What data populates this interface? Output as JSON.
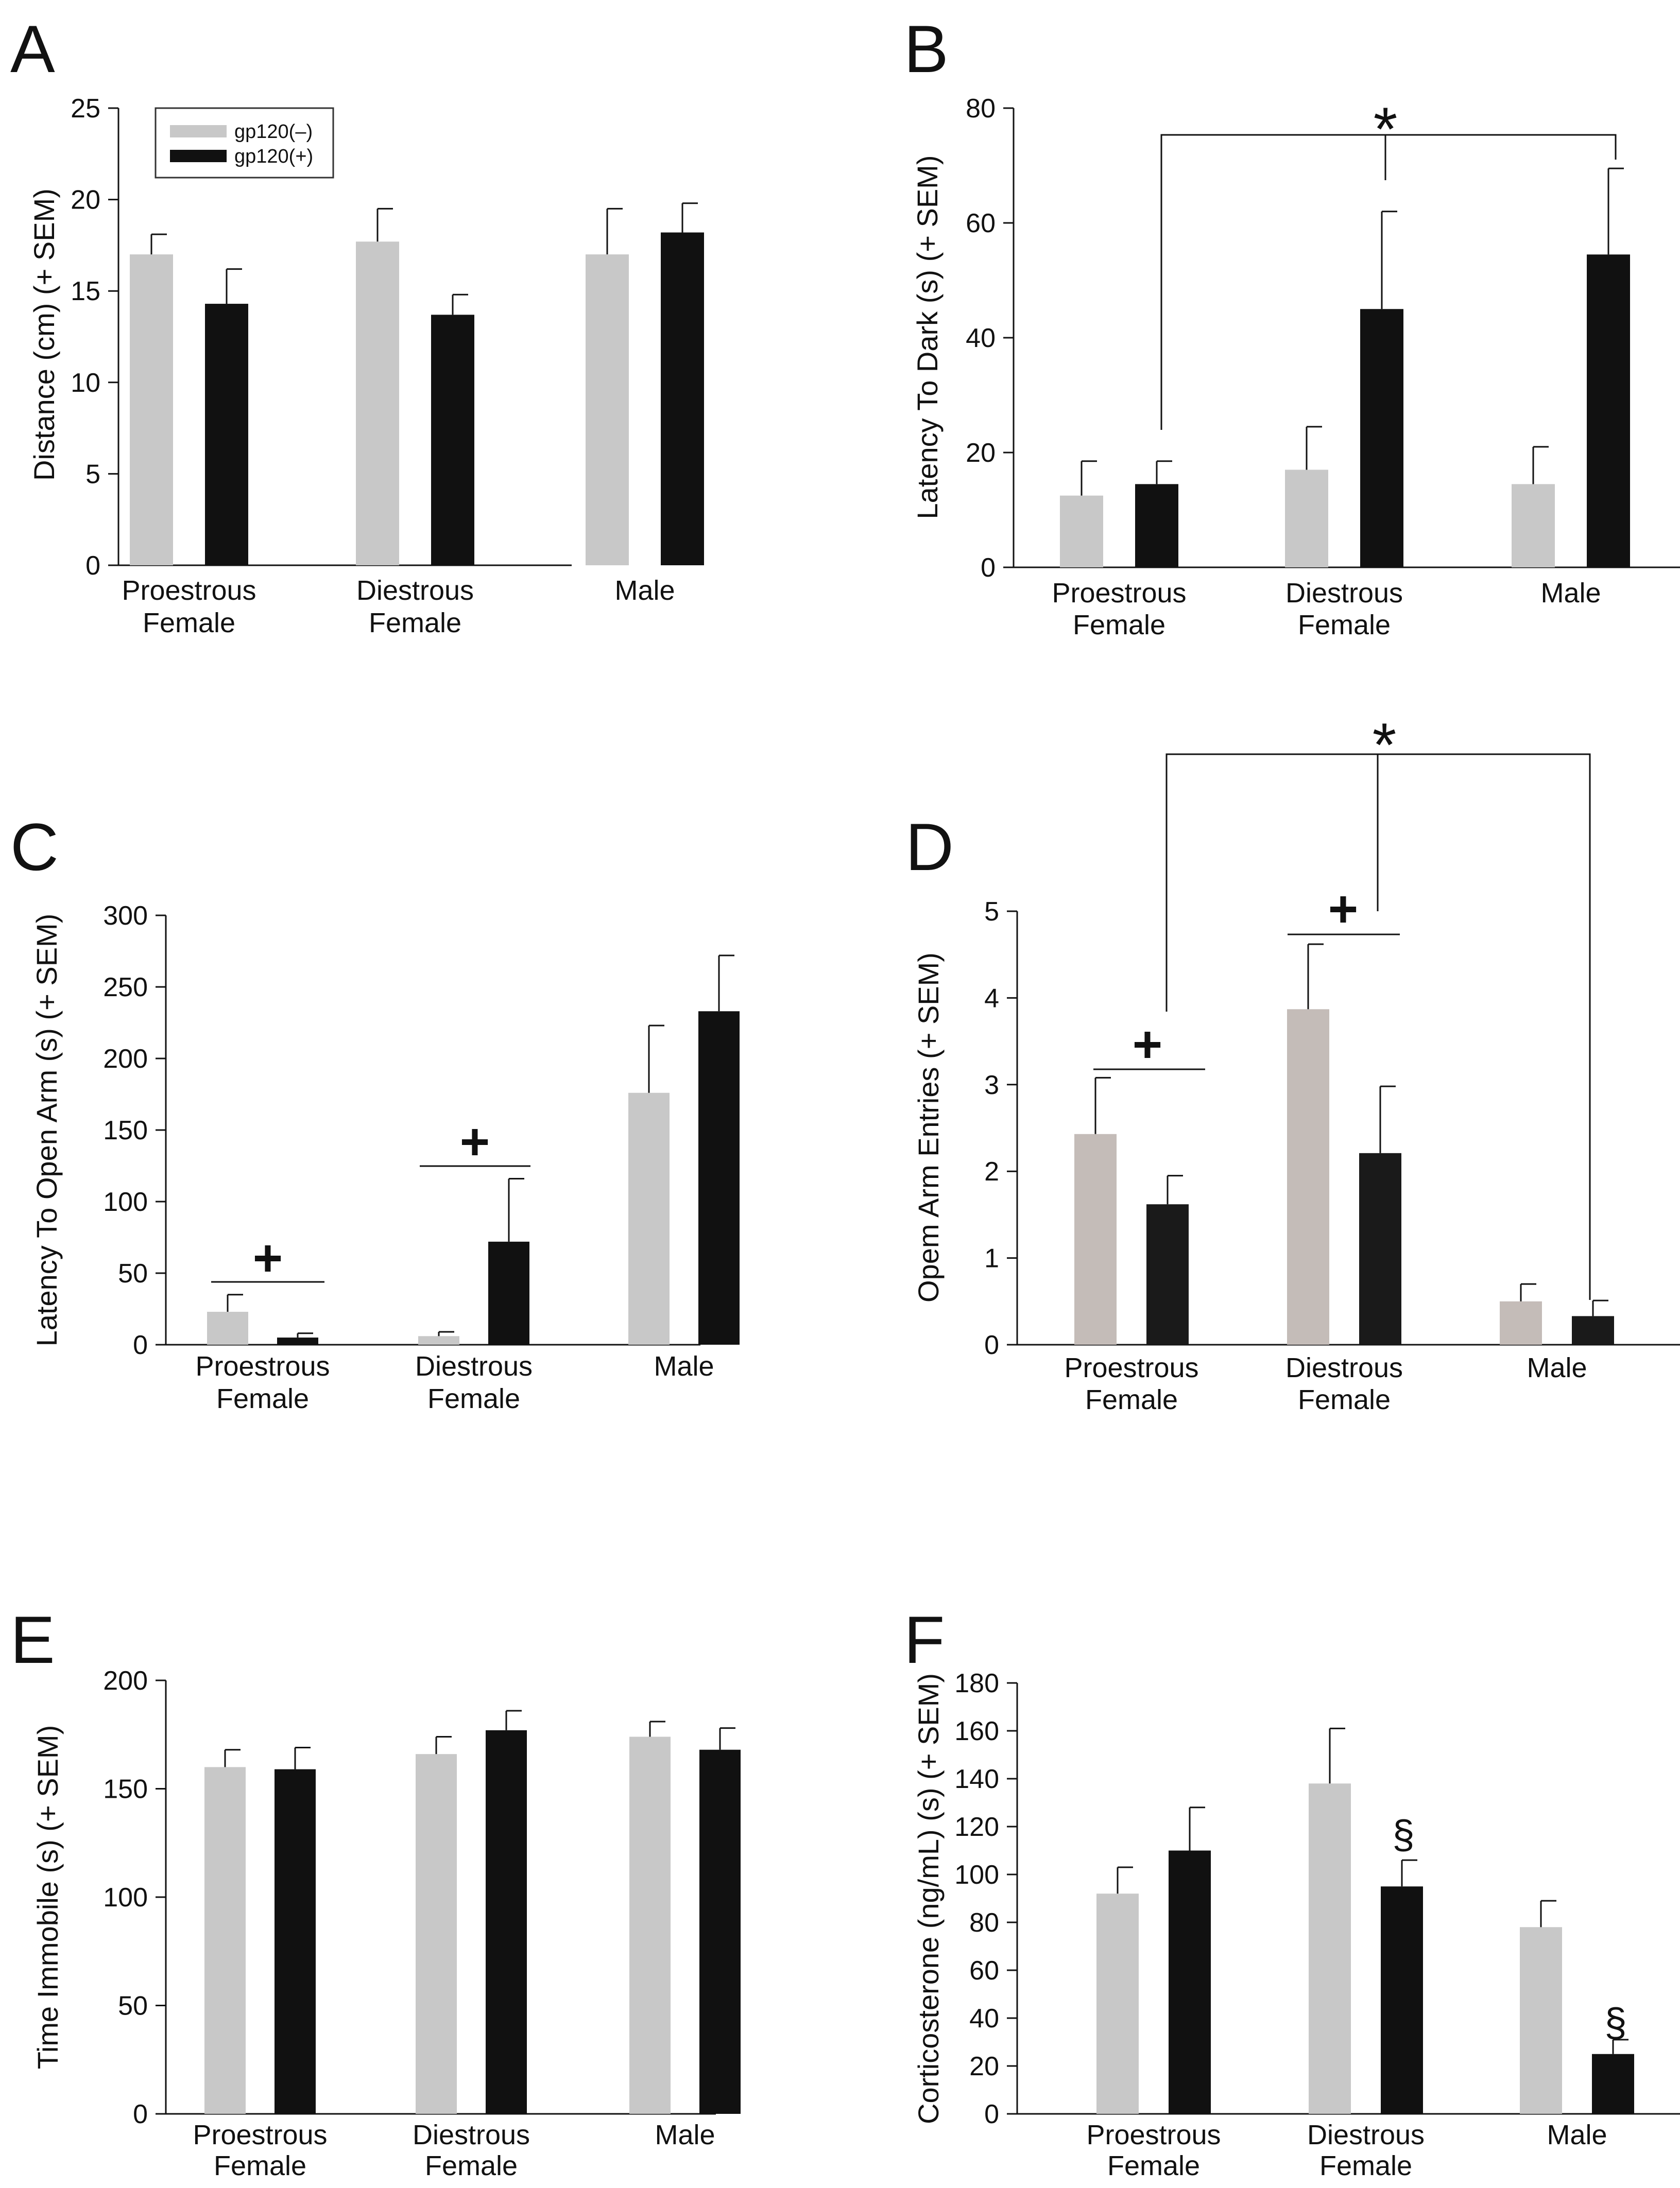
{
  "legend": {
    "entries": [
      {
        "name": "gp120(–)",
        "color": "#c8c8c8"
      },
      {
        "name": "gp120(+)",
        "color": "#111111"
      }
    ]
  },
  "chart_data": [
    {
      "panel": "A",
      "type": "bar",
      "categories": [
        [
          "Proestrous",
          "Female"
        ],
        [
          "Diestrous",
          "Female"
        ],
        [
          "Male"
        ]
      ],
      "series": [
        {
          "name": "gp120(–)",
          "color": "#c8c8c8",
          "values": [
            17.0,
            17.7,
            17.0
          ],
          "sem": [
            1.1,
            1.8,
            2.5
          ]
        },
        {
          "name": "gp120(+)",
          "color": "#111111",
          "values": [
            14.3,
            13.7,
            18.2
          ],
          "sem": [
            1.9,
            1.1,
            1.6
          ]
        }
      ],
      "ylabel": "Distance (cm) (+ SEM)",
      "ylim": [
        0,
        25
      ],
      "yticks": [
        "0",
        "5",
        "10",
        "15",
        "20",
        "25"
      ],
      "annotations": []
    },
    {
      "panel": "B",
      "type": "bar",
      "categories": [
        [
          "Proestrous",
          "Female"
        ],
        [
          "Diestrous",
          "Female"
        ],
        [
          "Male"
        ]
      ],
      "series": [
        {
          "name": "gp120(–)",
          "color": "#c8c8c8",
          "values": [
            12.5,
            17.0,
            14.5
          ],
          "sem": [
            6.0,
            7.5,
            6.5
          ]
        },
        {
          "name": "gp120(+)",
          "color": "#111111",
          "values": [
            14.5,
            45.0,
            54.5
          ],
          "sem": [
            4.0,
            17.0,
            15.0
          ]
        }
      ],
      "ylabel": "Latency To Dark (s) (+ SEM)",
      "ylim": [
        0,
        80
      ],
      "yticks": [
        "0",
        "20",
        "40",
        "60",
        "80"
      ],
      "annotations": [
        {
          "symbol": "*",
          "kind": "bracket"
        }
      ]
    },
    {
      "panel": "C",
      "type": "bar",
      "categories": [
        [
          "Proestrous",
          "Female"
        ],
        [
          "Diestrous",
          "Female"
        ],
        [
          "Male"
        ]
      ],
      "series": [
        {
          "name": "gp120(–)",
          "color": "#c8c8c8",
          "values": [
            23,
            6,
            176
          ],
          "sem": [
            12,
            3,
            47
          ]
        },
        {
          "name": "gp120(+)",
          "color": "#111111",
          "values": [
            5,
            72,
            233
          ],
          "sem": [
            3,
            44,
            39
          ]
        }
      ],
      "ylabel": "Latency To Open Arm (s) (+ SEM)",
      "ylim": [
        0,
        300
      ],
      "yticks": [
        "0",
        "50",
        "100",
        "150",
        "200",
        "250",
        "300"
      ],
      "annotations": [
        {
          "symbol": "+",
          "kind": "line"
        },
        {
          "symbol": "+",
          "kind": "line"
        }
      ]
    },
    {
      "panel": "D",
      "type": "bar",
      "categories": [
        [
          "Proestrous",
          "Female"
        ],
        [
          "Diestrous",
          "Female"
        ],
        [
          "Male"
        ]
      ],
      "series": [
        {
          "name": "gp120(–)",
          "color": "#c4bcb8",
          "values": [
            2.43,
            3.87,
            0.5
          ],
          "sem": [
            0.65,
            0.75,
            0.2
          ]
        },
        {
          "name": "gp120(+)",
          "color": "#1a1a1a",
          "values": [
            1.62,
            2.21,
            0.33
          ],
          "sem": [
            0.33,
            0.77,
            0.18
          ]
        }
      ],
      "ylabel": "Opem Arm Entries (+ SEM)",
      "ylim": [
        0,
        5
      ],
      "yticks": [
        "0",
        "1",
        "2",
        "3",
        "4",
        "5"
      ],
      "annotations": [
        {
          "symbol": "*",
          "kind": "bracket"
        },
        {
          "symbol": "+",
          "kind": "line"
        },
        {
          "symbol": "+",
          "kind": "line"
        }
      ]
    },
    {
      "panel": "E",
      "type": "bar",
      "categories": [
        [
          "Proestrous",
          "Female"
        ],
        [
          "Diestrous",
          "Female"
        ],
        [
          "Male"
        ]
      ],
      "series": [
        {
          "name": "gp120(–)",
          "color": "#c8c8c8",
          "values": [
            160,
            166,
            174
          ],
          "sem": [
            8,
            8,
            7
          ]
        },
        {
          "name": "gp120(+)",
          "color": "#111111",
          "values": [
            159,
            177,
            168
          ],
          "sem": [
            10,
            9,
            10
          ]
        }
      ],
      "ylabel": "Time Immobile (s) (+ SEM)",
      "ylim": [
        0,
        200
      ],
      "yticks": [
        "0",
        "50",
        "100",
        "150",
        "200"
      ],
      "annotations": []
    },
    {
      "panel": "F",
      "type": "bar",
      "categories": [
        [
          "Proestrous",
          "Female"
        ],
        [
          "Diestrous",
          "Female"
        ],
        [
          "Male"
        ]
      ],
      "series": [
        {
          "name": "gp120(–)",
          "color": "#c8c8c8",
          "values": [
            92,
            138,
            78
          ],
          "sem": [
            11,
            23,
            11
          ]
        },
        {
          "name": "gp120(+)",
          "color": "#111111",
          "values": [
            110,
            95,
            25
          ],
          "sem": [
            18,
            11,
            6
          ]
        }
      ],
      "ylabel": "Corticosterone (ng/mL) (s) (+ SEM)",
      "ylim": [
        0,
        180
      ],
      "yticks": [
        "0",
        "20",
        "40",
        "60",
        "80",
        "100",
        "120",
        "140",
        "160",
        "180"
      ],
      "annotations": [
        {
          "symbol": "§",
          "kind": "mark"
        },
        {
          "symbol": "§",
          "kind": "mark"
        }
      ]
    }
  ]
}
